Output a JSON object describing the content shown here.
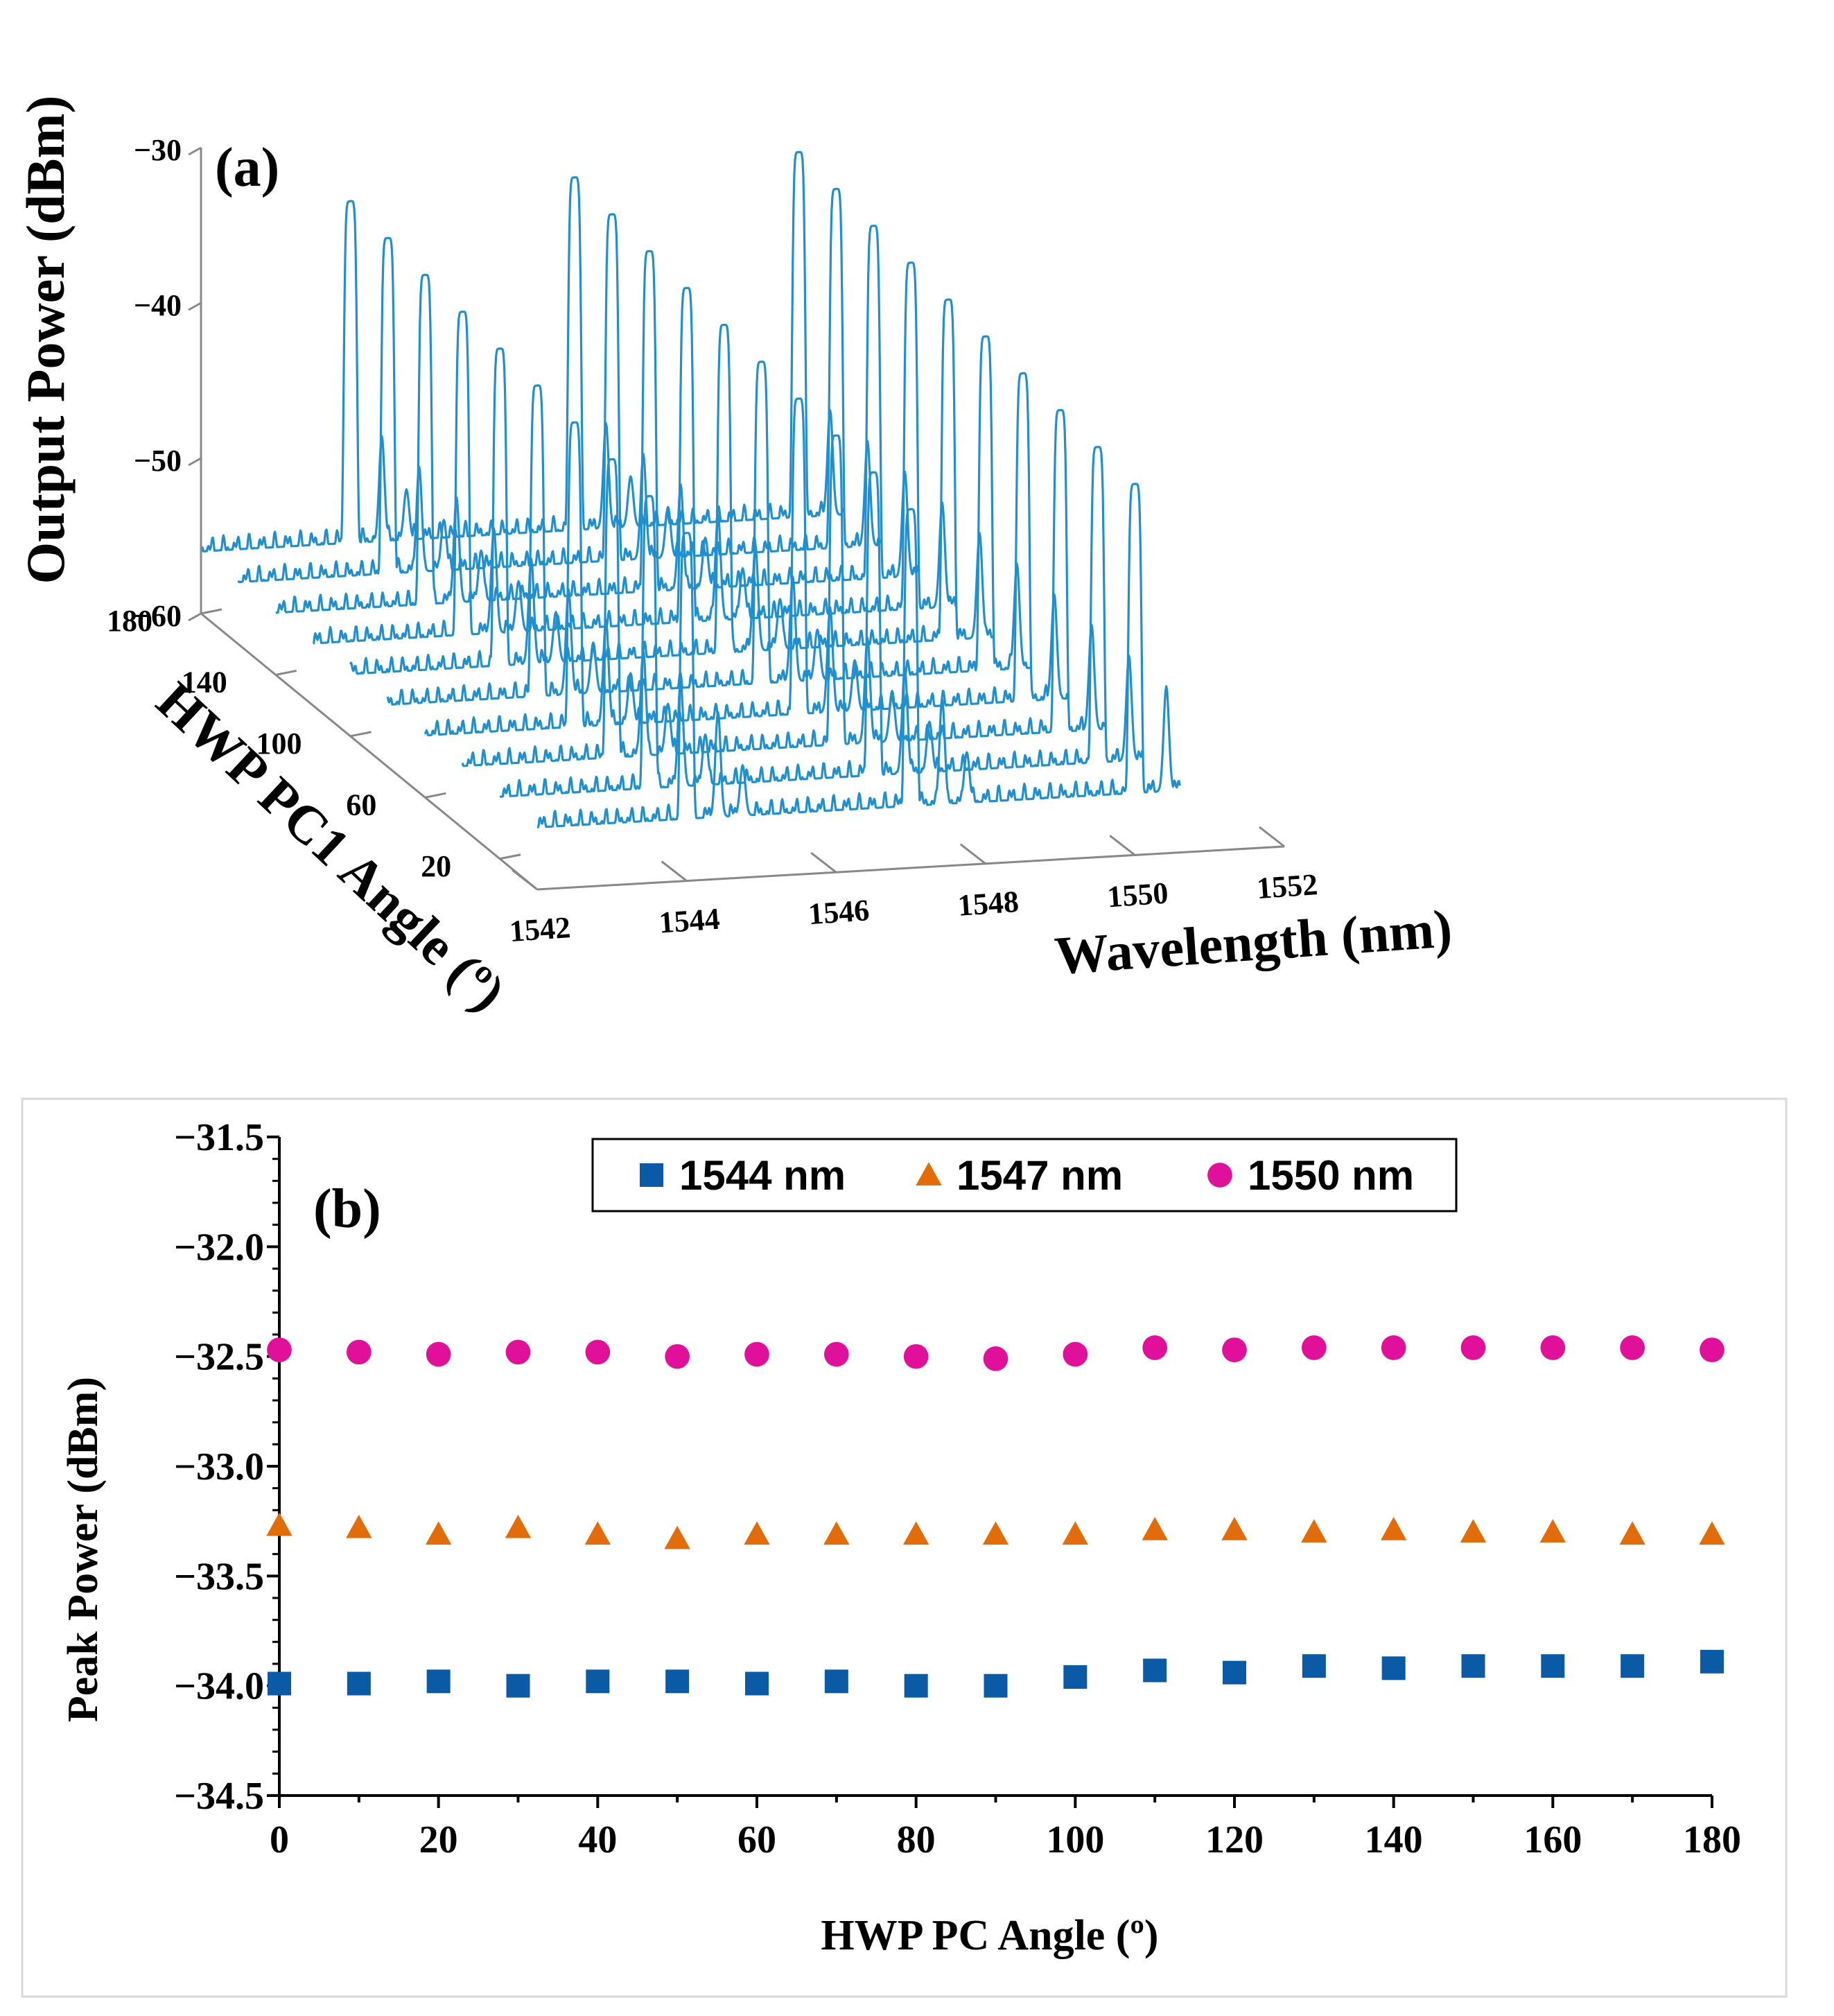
{
  "chart_data": [
    {
      "panel": "(a)",
      "type": "line",
      "subtype": "3d-waterfall",
      "title": "",
      "xlabel": "Wavelength (nm)",
      "ylabel": "HWP PC1 Angle (º)",
      "zlabel": "Output Power (dBm)",
      "x_ticks": [
        "1542",
        "1544",
        "1546",
        "1548",
        "1550",
        "1552"
      ],
      "y_ticks": [
        "20",
        "60",
        "100",
        "140",
        "180"
      ],
      "z_ticks": [
        "−30",
        "−40",
        "−50",
        "−60"
      ],
      "xlim": [
        1542,
        1552
      ],
      "ylim": [
        0,
        180
      ],
      "zlim": [
        -60,
        -30
      ],
      "grid": false,
      "line_color": "#1f8fcf",
      "traces": 10,
      "peak_wavelengths_nm": [
        1544,
        1547,
        1550
      ],
      "peak_power_dBm": [
        -34,
        -33.3,
        -32.5
      ],
      "noise_floor_dBm": -56
    },
    {
      "panel": "(b)",
      "type": "scatter",
      "title": "",
      "xlabel": "HWP PC Angle (º)",
      "ylabel": "Peak Power (dBm)",
      "xlim": [
        0,
        180
      ],
      "ylim": [
        -34.5,
        -31.5
      ],
      "x_ticks": [
        "0",
        "20",
        "40",
        "60",
        "80",
        "100",
        "120",
        "140",
        "160",
        "180"
      ],
      "y_ticks": [
        "−31.5",
        "−32.0",
        "−32.5",
        "−33.0",
        "−33.5",
        "−34.0",
        "−34.5"
      ],
      "legend_position": "top-center",
      "grid": false,
      "x": [
        0,
        10,
        20,
        30,
        40,
        50,
        60,
        70,
        80,
        90,
        100,
        110,
        120,
        130,
        140,
        150,
        160,
        170,
        180
      ],
      "series": [
        {
          "name": "1544 nm",
          "marker": "square",
          "color": "#0b5aa6",
          "values": [
            -33.99,
            -33.99,
            -33.98,
            -34.0,
            -33.98,
            -33.98,
            -33.99,
            -33.98,
            -34.0,
            -34.0,
            -33.96,
            -33.93,
            -33.94,
            -33.91,
            -33.92,
            -33.91,
            -33.91,
            -33.91,
            -33.89
          ]
        },
        {
          "name": "1547 nm",
          "marker": "triangle",
          "color": "#e36c0a",
          "values": [
            -33.27,
            -33.28,
            -33.31,
            -33.28,
            -33.31,
            -33.33,
            -33.31,
            -33.31,
            -33.31,
            -33.31,
            -33.31,
            -33.29,
            -33.29,
            -33.3,
            -33.29,
            -33.3,
            -33.3,
            -33.31,
            -33.31
          ]
        },
        {
          "name": "1550 nm",
          "marker": "circle",
          "color": "#e0109a",
          "values": [
            -32.47,
            -32.48,
            -32.49,
            -32.48,
            -32.48,
            -32.5,
            -32.49,
            -32.49,
            -32.5,
            -32.51,
            -32.49,
            -32.46,
            -32.47,
            -32.46,
            -32.46,
            -32.46,
            -32.46,
            -32.46,
            -32.47
          ]
        }
      ]
    }
  ]
}
